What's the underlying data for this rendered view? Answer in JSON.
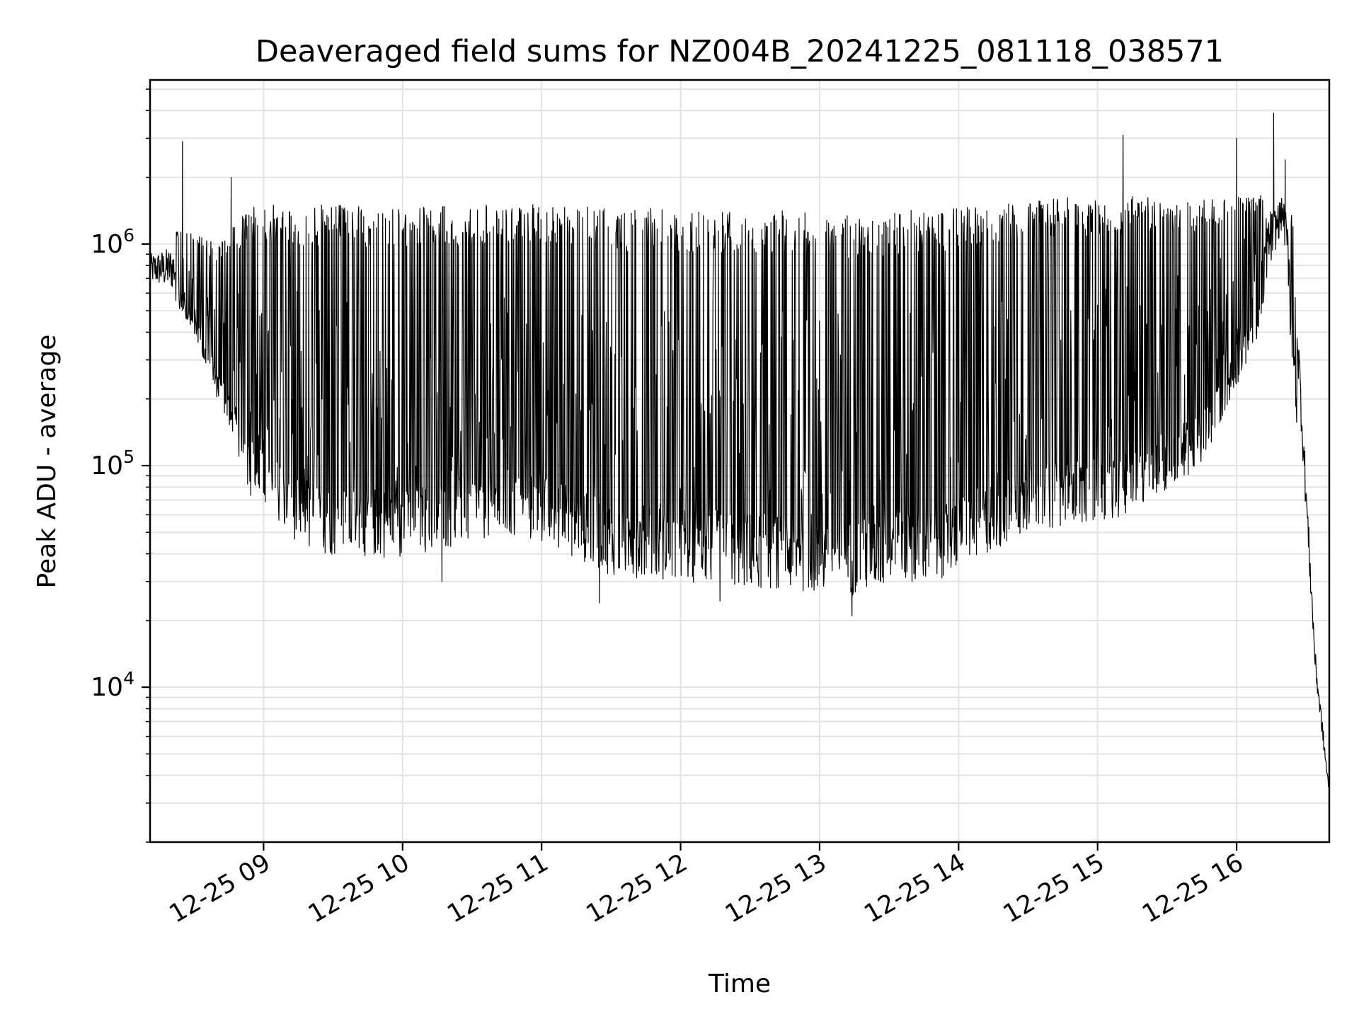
{
  "chart_data": {
    "type": "line",
    "title": "Deaveraged field sums for NZ004B_20241225_081118_038571",
    "xlabel": "Time",
    "ylabel": "Peak ADU - average",
    "yscale": "log",
    "xlim": [
      "2024-12-25 08:11",
      "2024-12-25 16:40"
    ],
    "ylim": [
      2000,
      5500000
    ],
    "grid": true,
    "line_color": "#000000",
    "xticks": [
      {
        "t": "2024-12-25 09:00",
        "label": "12-25 09"
      },
      {
        "t": "2024-12-25 10:00",
        "label": "12-25 10"
      },
      {
        "t": "2024-12-25 11:00",
        "label": "12-25 11"
      },
      {
        "t": "2024-12-25 12:00",
        "label": "12-25 12"
      },
      {
        "t": "2024-12-25 13:00",
        "label": "12-25 13"
      },
      {
        "t": "2024-12-25 14:00",
        "label": "12-25 14"
      },
      {
        "t": "2024-12-25 15:00",
        "label": "12-25 15"
      },
      {
        "t": "2024-12-25 16:00",
        "label": "12-25 16"
      }
    ],
    "yticks": [
      {
        "value": 10000,
        "base": "10",
        "exp": "4"
      },
      {
        "value": 100000,
        "base": "10",
        "exp": "5"
      },
      {
        "value": 1000000,
        "base": "10",
        "exp": "6"
      }
    ],
    "series": [
      {
        "envelope": [
          {
            "t": "2024-12-25 08:11",
            "low": 600000,
            "high": 1000000
          },
          {
            "t": "2024-12-25 08:25",
            "low": 500000,
            "high": 1200000
          },
          {
            "t": "2024-12-25 08:40",
            "low": 200000,
            "high": 1000000
          },
          {
            "t": "2024-12-25 08:55",
            "low": 70000,
            "high": 1500000
          },
          {
            "t": "2024-12-25 09:20",
            "low": 40000,
            "high": 1500000
          },
          {
            "t": "2024-12-25 10:00",
            "low": 38000,
            "high": 1500000
          },
          {
            "t": "2024-12-25 10:30",
            "low": 45000,
            "high": 1500000
          },
          {
            "t": "2024-12-25 11:00",
            "low": 45000,
            "high": 1550000
          },
          {
            "t": "2024-12-25 11:30",
            "low": 32000,
            "high": 1450000
          },
          {
            "t": "2024-12-25 12:30",
            "low": 28000,
            "high": 1450000
          },
          {
            "t": "2024-12-25 13:15",
            "low": 26000,
            "high": 1350000
          },
          {
            "t": "2024-12-25 13:50",
            "low": 30000,
            "high": 1450000
          },
          {
            "t": "2024-12-25 14:30",
            "low": 50000,
            "high": 1600000
          },
          {
            "t": "2024-12-25 15:15",
            "low": 60000,
            "high": 1650000
          },
          {
            "t": "2024-12-25 15:45",
            "low": 100000,
            "high": 1600000
          },
          {
            "t": "2024-12-25 16:10",
            "low": 400000,
            "high": 1700000
          },
          {
            "t": "2024-12-25 16:20",
            "low": 1100000,
            "high": 1800000
          },
          {
            "t": "2024-12-25 16:26",
            "low": 150000,
            "high": 1200000
          },
          {
            "t": "2024-12-25 16:34",
            "low": 8000,
            "high": 20000
          },
          {
            "t": "2024-12-25 16:40",
            "low": 2700,
            "high": 4000
          }
        ],
        "peaks": [
          {
            "t": "2024-12-25 08:25",
            "y": 2900000
          },
          {
            "t": "2024-12-25 08:46",
            "y": 2000000
          },
          {
            "t": "2024-12-25 15:11",
            "y": 3100000
          },
          {
            "t": "2024-12-25 16:00",
            "y": 3000000
          },
          {
            "t": "2024-12-25 16:16",
            "y": 3900000
          },
          {
            "t": "2024-12-25 16:21",
            "y": 2400000
          }
        ],
        "dips": [
          {
            "t": "2024-12-25 10:17",
            "y": 30000
          },
          {
            "t": "2024-12-25 11:25",
            "y": 24000
          },
          {
            "t": "2024-12-25 12:17",
            "y": 24500
          },
          {
            "t": "2024-12-25 13:14",
            "y": 21000
          }
        ]
      }
    ]
  }
}
